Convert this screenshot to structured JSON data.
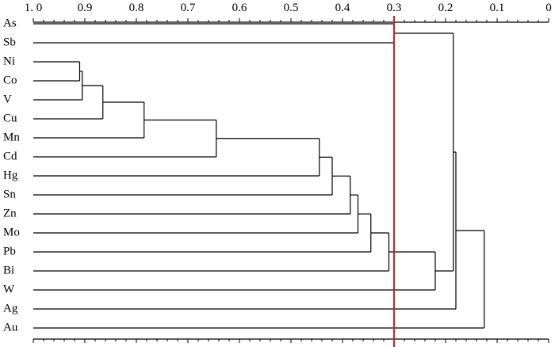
{
  "chart_data": {
    "type": "dendrogram",
    "orientation": "horizontal",
    "x_axis": {
      "range": [
        1.0,
        0.0
      ],
      "ticks": [
        1.0,
        0.9,
        0.8,
        0.7,
        0.6,
        0.5,
        0.4,
        0.3,
        0.2,
        0.1,
        0.0
      ],
      "tick_labels": [
        "1. 0",
        "0.9",
        "0.8",
        "0.7",
        "0.6",
        "0.5",
        "0.4",
        "0.3",
        "0.2",
        "0.1",
        "0"
      ],
      "position": "top-and-bottom"
    },
    "leaves": [
      "As",
      "Sb",
      "Ni",
      "Co",
      "V",
      "Cu",
      "Mn",
      "Cd",
      "Hg",
      "Sn",
      "Zn",
      "Mo",
      "Pb",
      "Bi",
      "W",
      "Ag",
      "Au"
    ],
    "merges": [
      {
        "id": "c1",
        "children": [
          "As",
          "Sb"
        ],
        "similarity": 0.3
      },
      {
        "id": "c2",
        "children": [
          "Ni",
          "Co"
        ],
        "similarity": 0.91
      },
      {
        "id": "c3",
        "children": [
          "c2",
          "V"
        ],
        "similarity": 0.905
      },
      {
        "id": "c4",
        "children": [
          "c3",
          "Cu"
        ],
        "similarity": 0.865
      },
      {
        "id": "c5",
        "children": [
          "c4",
          "Mn"
        ],
        "similarity": 0.785
      },
      {
        "id": "c6",
        "children": [
          "c5",
          "Cd"
        ],
        "similarity": 0.645
      },
      {
        "id": "c7",
        "children": [
          "c6",
          "Hg"
        ],
        "similarity": 0.445
      },
      {
        "id": "c8",
        "children": [
          "c7",
          "Sn"
        ],
        "similarity": 0.42
      },
      {
        "id": "c9",
        "children": [
          "c8",
          "Zn"
        ],
        "similarity": 0.385
      },
      {
        "id": "c10",
        "children": [
          "c9",
          "Mo"
        ],
        "similarity": 0.37
      },
      {
        "id": "c11",
        "children": [
          "c10",
          "Pb"
        ],
        "similarity": 0.345
      },
      {
        "id": "c12",
        "children": [
          "c11",
          "Bi"
        ],
        "similarity": 0.31
      },
      {
        "id": "c13",
        "children": [
          "c12",
          "W"
        ],
        "similarity": 0.22
      },
      {
        "id": "c14",
        "children": [
          "c1",
          "c13"
        ],
        "similarity": 0.185
      },
      {
        "id": "c15",
        "children": [
          "c14",
          "Ag"
        ],
        "similarity": 0.18
      },
      {
        "id": "c16",
        "children": [
          "c15",
          "Au"
        ],
        "similarity": 0.125
      }
    ],
    "threshold": {
      "value": 0.3,
      "color": "#d42020"
    }
  }
}
